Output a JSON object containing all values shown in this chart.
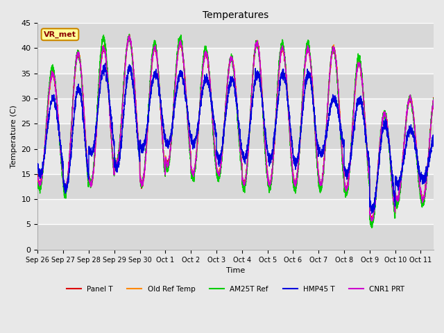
{
  "title": "Temperatures",
  "xlabel": "Time",
  "ylabel": "Temperature (C)",
  "ylim": [
    0,
    45
  ],
  "background_color": "#e8e8e8",
  "plot_bg_color": "#e8e8e8",
  "band_colors": [
    "#d8d8d8",
    "#e8e8e8"
  ],
  "grid_color": "#d0d0d0",
  "annotation_text": "VR_met",
  "annotation_bg": "#ffff99",
  "annotation_border": "#cc8800",
  "tick_labels": [
    "Sep 26",
    "Sep 27",
    "Sep 28",
    "Sep 29",
    "Sep 30",
    "Oct 1",
    "Oct 2",
    "Oct 3",
    "Oct 4",
    "Oct 5",
    "Oct 6",
    "Oct 7",
    "Oct 8",
    "Oct 9",
    "Oct 10",
    "Oct 11"
  ],
  "series": {
    "Panel T": {
      "color": "#dd0000",
      "lw": 1.0
    },
    "Old Ref Temp": {
      "color": "#ff8800",
      "lw": 1.0
    },
    "AM25T Ref": {
      "color": "#00cc00",
      "lw": 1.0
    },
    "HMP45 T": {
      "color": "#0000dd",
      "lw": 1.0
    },
    "CNR1 PRT": {
      "color": "#cc00cc",
      "lw": 1.0
    }
  },
  "num_days": 16,
  "day_min_temps": [
    13,
    12,
    13,
    17,
    13,
    17,
    15,
    15,
    13,
    13,
    13,
    13,
    12,
    6,
    10,
    10
  ],
  "day_max_temps": [
    35,
    39,
    40,
    42,
    40,
    41,
    39,
    38,
    41,
    40,
    40,
    40,
    37,
    27,
    30,
    31
  ],
  "hmp45_day_min": [
    15,
    12,
    19,
    16,
    20,
    21,
    21,
    18,
    18,
    18,
    17,
    19,
    15,
    8,
    13,
    14
  ],
  "hmp45_day_max": [
    30,
    32,
    36,
    36,
    35,
    35,
    34,
    34,
    35,
    35,
    35,
    30,
    30,
    25,
    24,
    23
  ],
  "am25t_day_min": [
    12,
    11,
    13,
    17,
    13,
    16,
    14,
    14,
    12,
    12,
    12,
    12,
    11,
    5,
    9,
    9
  ],
  "am25t_day_max": [
    36,
    39,
    42,
    42,
    41,
    42,
    40,
    38,
    41,
    41,
    41,
    40,
    38,
    27,
    30,
    31
  ]
}
